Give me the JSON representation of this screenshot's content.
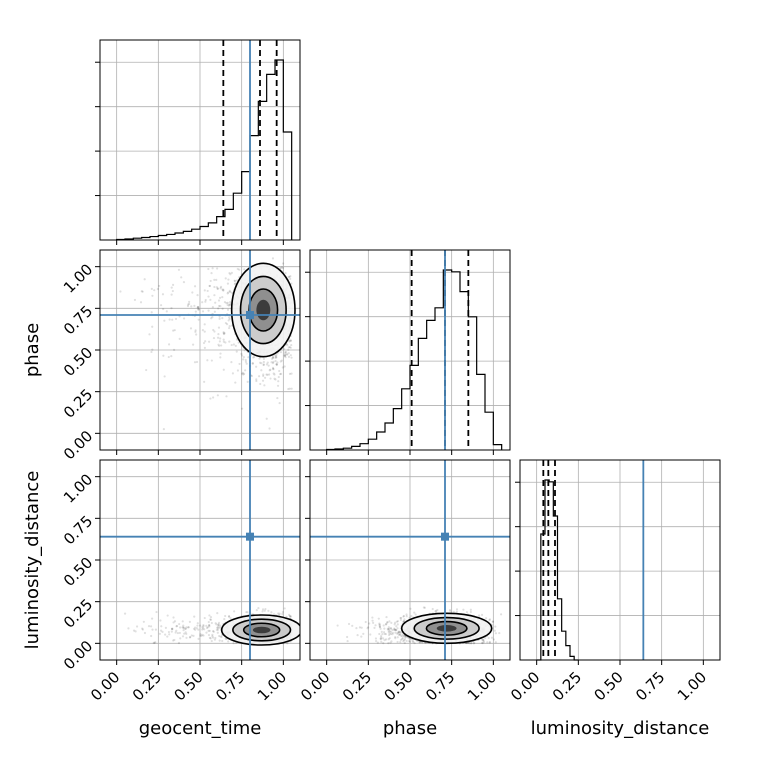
{
  "chart_data": {
    "type": "corner",
    "parameters": [
      {
        "key": "geocent_time",
        "label": "geocent_time",
        "range": [
          -0.1,
          1.1
        ],
        "truth": 0.8,
        "quantiles": [
          0.64,
          0.86,
          0.96
        ],
        "hist_edges": [
          0.0,
          0.05,
          0.1,
          0.15,
          0.2,
          0.25,
          0.3,
          0.35,
          0.4,
          0.45,
          0.5,
          0.55,
          0.6,
          0.65,
          0.7,
          0.75,
          0.8,
          0.85,
          0.9,
          0.95,
          1.0,
          1.05
        ],
        "hist_counts": [
          0.3,
          0.6,
          1.0,
          1.4,
          1.9,
          2.5,
          3.1,
          3.9,
          4.8,
          6.0,
          7.5,
          9.5,
          13,
          17,
          26,
          38,
          58,
          77,
          92,
          100,
          60
        ]
      },
      {
        "key": "phase",
        "label": "phase",
        "range": [
          -0.1,
          1.1
        ],
        "truth": 0.71,
        "quantiles": [
          0.51,
          0.71,
          0.85
        ],
        "hist_edges": [
          0.0,
          0.05,
          0.1,
          0.15,
          0.2,
          0.25,
          0.3,
          0.35,
          0.4,
          0.45,
          0.5,
          0.55,
          0.6,
          0.65,
          0.7,
          0.75,
          0.8,
          0.85,
          0.9,
          0.95,
          1.0,
          1.05
        ],
        "hist_counts": [
          0.3,
          0.6,
          1.0,
          2.0,
          3.5,
          6.0,
          10,
          15,
          23,
          34,
          47,
          62,
          72,
          79,
          100,
          99,
          88,
          74,
          42,
          21,
          3
        ]
      },
      {
        "key": "luminosity_distance",
        "label": "luminosity_distance",
        "range": [
          -0.1,
          1.1
        ],
        "truth": 0.64,
        "quantiles": [
          0.04,
          0.07,
          0.11
        ],
        "hist_edges": [
          0.0,
          0.025,
          0.05,
          0.075,
          0.1,
          0.125,
          0.15,
          0.175,
          0.2,
          0.225,
          0.25
        ],
        "hist_counts": [
          0,
          70,
          100,
          99,
          80,
          34,
          16,
          8,
          2,
          0
        ]
      }
    ],
    "ticks": [
      0.0,
      0.25,
      0.5,
      0.75,
      1.0
    ],
    "tick_labels": [
      "0.00",
      "0.25",
      "0.50",
      "0.75",
      "1.00"
    ],
    "truth_color": "#4682b4",
    "grid": true
  }
}
